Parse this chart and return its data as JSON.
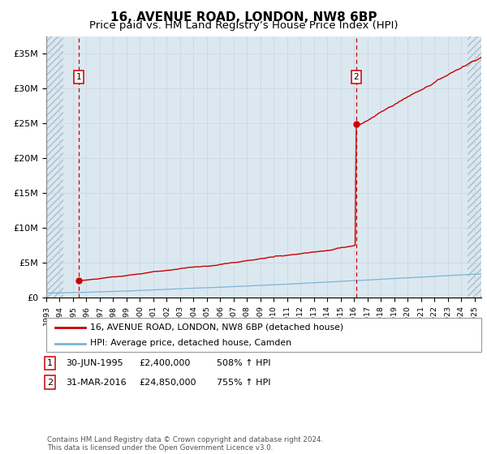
{
  "title": "16, AVENUE ROAD, LONDON, NW8 6BP",
  "subtitle": "Price paid vs. HM Land Registry’s House Price Index (HPI)",
  "ylim": [
    0,
    37500000
  ],
  "yticks": [
    0,
    5000000,
    10000000,
    15000000,
    20000000,
    25000000,
    30000000,
    35000000
  ],
  "ytick_labels": [
    "£0",
    "£5M",
    "£10M",
    "£15M",
    "£20M",
    "£25M",
    "£30M",
    "£35M"
  ],
  "sale1_x": 1995.417,
  "sale1_price": 2400000,
  "sale2_x": 2016.167,
  "sale2_price": 24850000,
  "sale1_note_num": "1",
  "sale1_note_date": "30-JUN-1995",
  "sale1_note_price": "£2,400,000",
  "sale1_note_hpi": "508% ↑ HPI",
  "sale2_note_num": "2",
  "sale2_note_date": "31-MAR-2016",
  "sale2_note_price": "£24,850,000",
  "sale2_note_hpi": "755% ↑ HPI",
  "legend_line1": "16, AVENUE ROAD, LONDON, NW8 6BP (detached house)",
  "legend_line2": "HPI: Average price, detached house, Camden",
  "footer": "Contains HM Land Registry data © Crown copyright and database right 2024.\nThis data is licensed under the Open Government Licence v3.0.",
  "hpi_color": "#7ab5d8",
  "price_color": "#cc0000",
  "box_color": "#cc0000",
  "grid_color": "#c8d4e0",
  "bg_color": "#dce8f0",
  "hatch_color": "#aabccc",
  "xmin": 1993.0,
  "xmax": 2025.5,
  "hatch_left_end": 1994.3,
  "hatch_right_start": 2024.5
}
